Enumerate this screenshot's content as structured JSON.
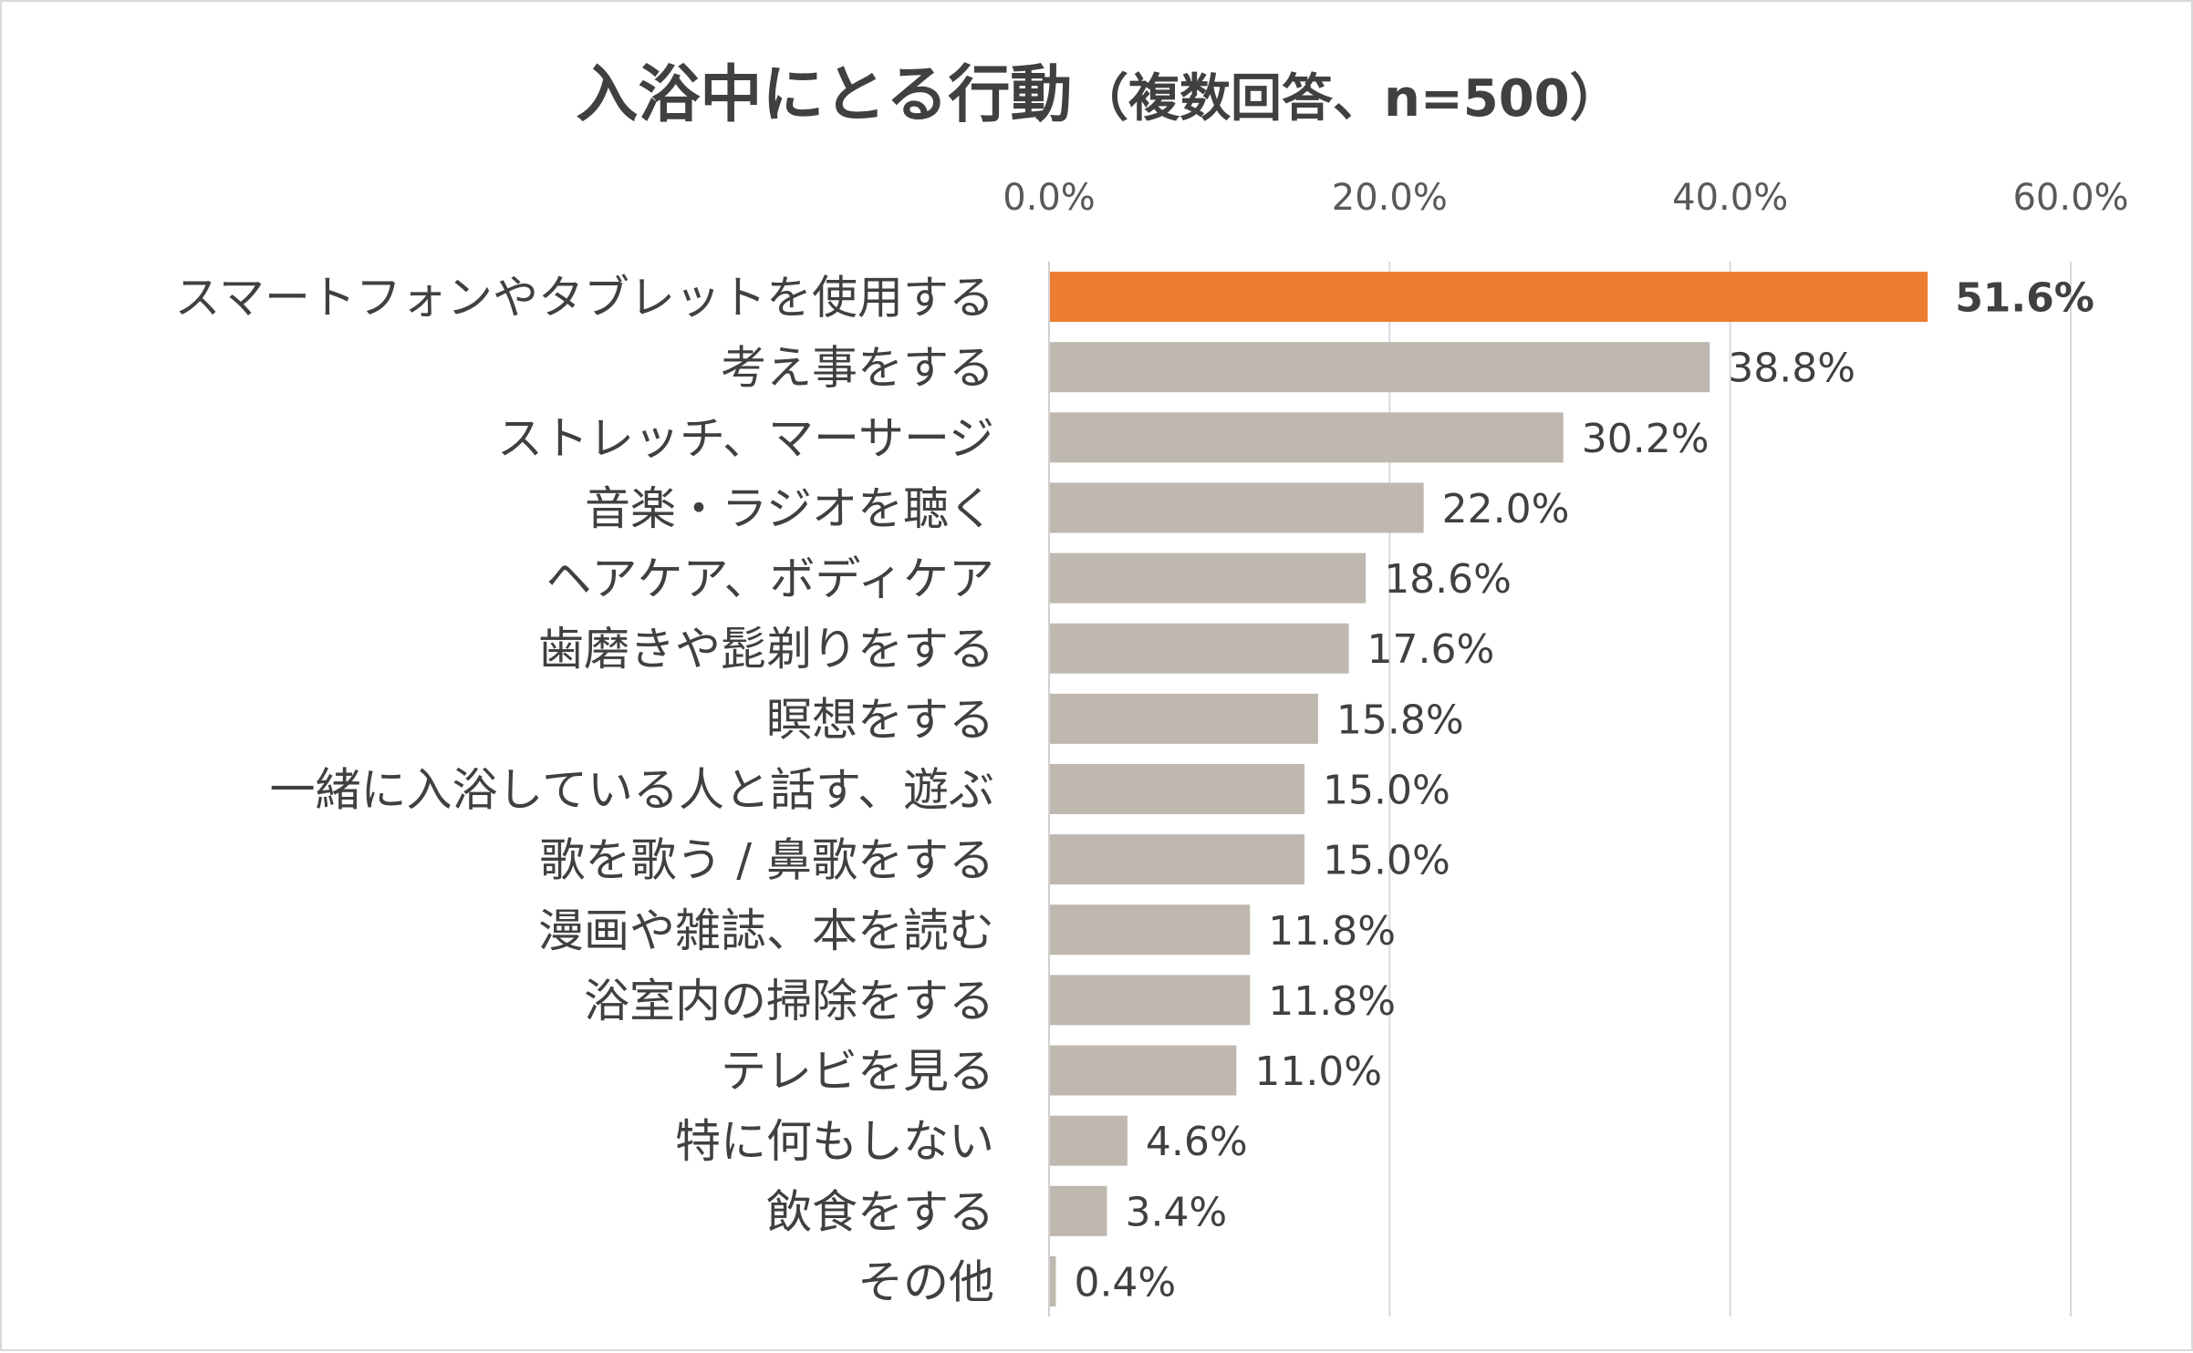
{
  "chart_data": {
    "type": "bar",
    "orientation": "horizontal",
    "title": "入浴中にとる行動",
    "subtitle": "（複数回答、n=500）",
    "xlabel": "",
    "ylabel": "",
    "xlim": [
      0,
      60
    ],
    "ticks": [
      0,
      20,
      40,
      60
    ],
    "tick_labels": [
      "0.0%",
      "20.0%",
      "40.0%",
      "60.0%"
    ],
    "grid": true,
    "highlight_color": "#ED7D31",
    "bar_color": "#BFB8B0",
    "categories": [
      "スマートフォンやタブレットを使用する",
      "考え事をする",
      "ストレッチ、マーサージ",
      "音楽・ラジオを聴く",
      "ヘアケア、ボディケア",
      "歯磨きや髭剃りをする",
      "瞑想をする",
      "一緒に入浴している人と話す、遊ぶ",
      "歌を歌う / 鼻歌をする",
      "漫画や雑誌、本を読む",
      "浴室内の掃除をする",
      "テレビを見る",
      "特に何もしない",
      "飲食をする",
      "その他"
    ],
    "values": [
      51.6,
      38.8,
      30.2,
      22.0,
      18.6,
      17.6,
      15.8,
      15.0,
      15.0,
      11.8,
      11.8,
      11.0,
      4.6,
      3.4,
      0.4
    ],
    "value_labels": [
      "51.6%",
      "38.8%",
      "30.2%",
      "22.0%",
      "18.6%",
      "17.6%",
      "15.8%",
      "15.0%",
      "15.0%",
      "11.8%",
      "11.8%",
      "11.0%",
      "4.6%",
      "3.4%",
      "0.4%"
    ],
    "highlight_index": 0
  }
}
